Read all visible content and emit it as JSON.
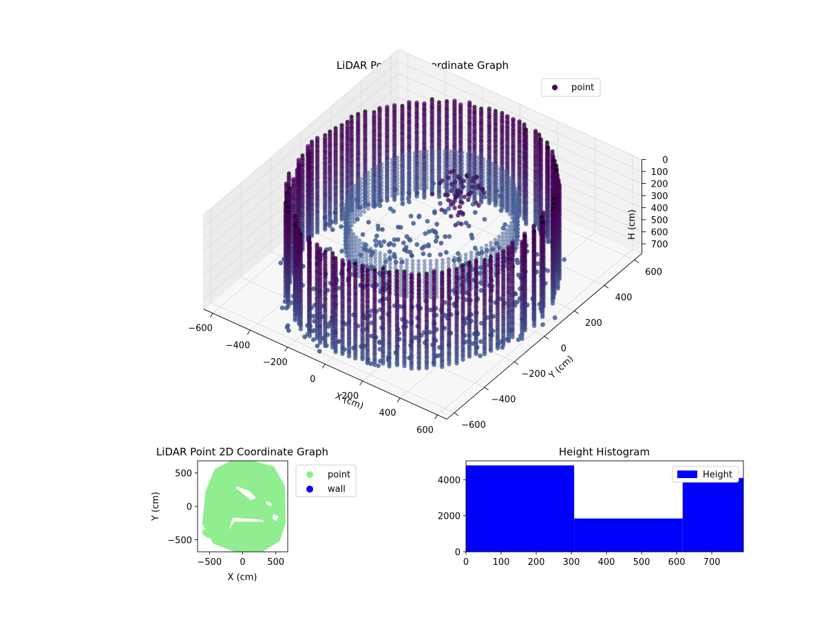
{
  "chart_data": [
    {
      "type": "scatter3d",
      "title": "LiDAR Point 3D Coordinate Graph",
      "xlabel": "X (cm)",
      "ylabel": "Y (cm)",
      "zlabel": "H (cm)",
      "xlim": [
        -650,
        650
      ],
      "ylim": [
        -650,
        650
      ],
      "zlim": [
        0,
        780
      ],
      "z_inverted": true,
      "x_ticks": [
        "−600",
        "−400",
        "−200",
        "0",
        "200",
        "400",
        "600"
      ],
      "y_ticks": [
        "−600",
        "−400",
        "−200",
        "0",
        "200",
        "400",
        "600"
      ],
      "z_ticks": [
        "0",
        "100",
        "200",
        "300",
        "400",
        "500",
        "600",
        "700"
      ],
      "legend": {
        "location": "top-right",
        "entries": [
          {
            "label": "point",
            "color": "#440154"
          }
        ]
      },
      "colormap": [
        "#440154",
        "#3b528b"
      ],
      "shape": {
        "outer_wall_radius": 560,
        "inner_ring_radius": 360,
        "height_range": [
          0,
          790
        ]
      }
    },
    {
      "type": "scatter",
      "title": "LiDAR Point 2D Coordinate Graph",
      "xlabel": "X (cm)",
      "ylabel": "Y (cm)",
      "xlim": [
        -680,
        680
      ],
      "ylim": [
        -680,
        680
      ],
      "x_ticks": [
        -500,
        0,
        500
      ],
      "y_ticks": [
        -500,
        0,
        500
      ],
      "legend": {
        "location": "outside-right",
        "entries": [
          {
            "label": "point",
            "color": "#90ee90"
          },
          {
            "label": "wall",
            "color": "#0000ff"
          }
        ]
      },
      "region": {
        "outline": [
          [
            -560,
            230
          ],
          [
            -420,
            560
          ],
          [
            -180,
            680
          ],
          [
            150,
            680
          ],
          [
            470,
            600
          ],
          [
            640,
            300
          ],
          [
            650,
            -250
          ],
          [
            560,
            -520
          ],
          [
            300,
            -680
          ],
          [
            -120,
            -680
          ],
          [
            -440,
            -560
          ],
          [
            -610,
            -260
          ]
        ],
        "gaps": [
          [
            [
              -90,
              300
            ],
            [
              100,
              230
            ],
            [
              200,
              130
            ],
            [
              120,
              90
            ],
            [
              -40,
              230
            ],
            [
              -100,
              270
            ]
          ],
          [
            [
              -150,
              -170
            ],
            [
              280,
              -200
            ],
            [
              330,
              -230
            ],
            [
              -130,
              -230
            ],
            [
              -210,
              -360
            ]
          ],
          [
            [
              360,
              80
            ],
            [
              440,
              40
            ],
            [
              430,
              0
            ],
            [
              360,
              30
            ]
          ],
          [
            [
              460,
              -110
            ],
            [
              540,
              -150
            ],
            [
              510,
              -220
            ],
            [
              450,
              -180
            ]
          ]
        ],
        "outlier_points": [
          [
            -560,
            -390
          ],
          [
            -520,
            -420
          ]
        ]
      }
    },
    {
      "type": "bar",
      "subtype": "histogram",
      "title": "Height Histogram",
      "bins": [
        [
          0,
          308
        ],
        [
          308,
          617
        ],
        [
          617,
          790
        ]
      ],
      "values": [
        4800,
        1850,
        4100
      ],
      "color": "#0000ff",
      "xlim": [
        0,
        790
      ],
      "ylim": [
        0,
        5050
      ],
      "x_ticks": [
        0,
        100,
        200,
        300,
        400,
        500,
        600,
        700
      ],
      "y_ticks": [
        0,
        2000,
        4000
      ],
      "legend": {
        "location": "top-right",
        "entries": [
          {
            "label": "Height",
            "color": "#0000ff"
          }
        ]
      }
    }
  ]
}
